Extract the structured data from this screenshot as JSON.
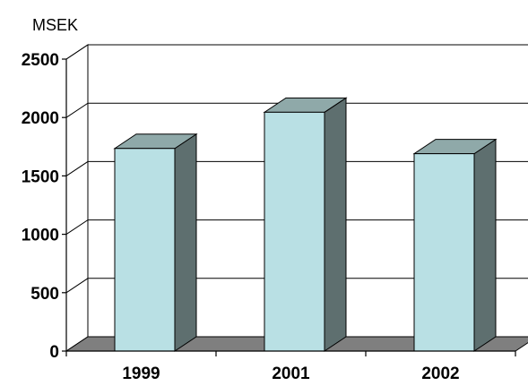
{
  "chart_data": {
    "type": "bar",
    "unit_label": "MSEK",
    "categories": [
      "1999",
      "2001",
      "2002"
    ],
    "values": [
      1735,
      2045,
      1690
    ],
    "ylim": [
      0,
      2500
    ],
    "yticks": [
      "0",
      "500",
      "1000",
      "1500",
      "2000",
      "2500"
    ],
    "grid": true,
    "style": "3d-column",
    "colors": {
      "bar_front": "#b9e0e4",
      "bar_top": "#8fa9a9",
      "bar_side": "#5e6f6f",
      "floor": "#7f7f7f",
      "wall": "#ffffff",
      "grid": "#000000"
    }
  }
}
